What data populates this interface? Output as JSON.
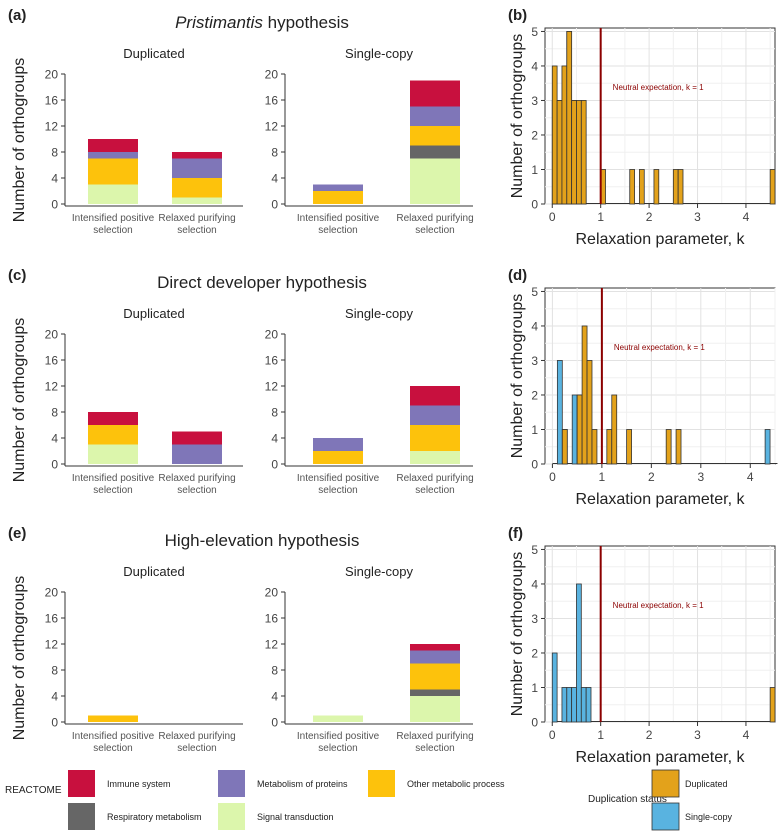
{
  "reactome_categories": [
    {
      "key": "immune",
      "label": "Immune system",
      "color": "#c8103e"
    },
    {
      "key": "respiratory",
      "label": "Respiratory metabolism",
      "color": "#666666"
    },
    {
      "key": "proteins",
      "label": "Metabolism of proteins",
      "color": "#7f76b8"
    },
    {
      "key": "signal",
      "label": "Signal transduction",
      "color": "#dcf6ac"
    },
    {
      "key": "other",
      "label": "Other metabolic process",
      "color": "#fdc20c"
    }
  ],
  "legend": {
    "reactome_title": "REACTOME",
    "duplication_title": "Duplication status",
    "duplication_items": [
      {
        "key": "dup",
        "label": "Duplicated",
        "color": "#e3a21b"
      },
      {
        "key": "single",
        "label": "Single-copy",
        "color": "#59b3e0"
      }
    ]
  },
  "chart_data": [
    {
      "panel": "(a)",
      "type": "bar",
      "stacked": true,
      "title_italic": "Pristimantis",
      "title_rest": " hypothesis",
      "ylabel": "Number of orthogroups",
      "ylim": [
        0,
        20
      ],
      "yticks": [
        "0",
        "4",
        "8",
        "12",
        "16",
        "20"
      ],
      "facets": [
        "Duplicated",
        "Single-copy"
      ],
      "categories": [
        "Intensified positive selection",
        "Relaxed purifying selection"
      ],
      "category_lines": [
        [
          "Intensified positive",
          "selection"
        ],
        [
          "Relaxed purifying",
          "selection"
        ]
      ],
      "stack_order": [
        "signal",
        "respiratory",
        "other",
        "proteins",
        "immune"
      ],
      "bars": [
        [
          {
            "signal": 3,
            "respiratory": 0,
            "other": 4,
            "proteins": 1,
            "immune": 2
          },
          {
            "signal": 1,
            "respiratory": 0,
            "other": 3,
            "proteins": 3,
            "immune": 1
          }
        ],
        [
          {
            "signal": 0,
            "respiratory": 0,
            "other": 2,
            "proteins": 1,
            "immune": 0
          },
          {
            "signal": 7,
            "respiratory": 2,
            "other": 3,
            "proteins": 3,
            "immune": 4
          }
        ]
      ]
    },
    {
      "panel": "(b)",
      "type": "bar",
      "histogram": true,
      "xlabel": "Relaxation parameter, k",
      "ylabel": "Number of orthogroups",
      "xlim": [
        -0.15,
        4.6
      ],
      "ylim": [
        0,
        5.1
      ],
      "xticks": [
        "0",
        "1",
        "2",
        "3",
        "4"
      ],
      "yticks": [
        "0",
        "1",
        "2",
        "3",
        "4",
        "5"
      ],
      "neutral_line": 1,
      "annotation": "Neutral expectation, k = 1",
      "bin_width": 0.1,
      "series": [
        {
          "name": "Single-copy",
          "key": "single",
          "bins": [
            [
              0.05,
              3
            ],
            [
              0.15,
              3
            ],
            [
              0.25,
              3
            ],
            [
              0.35,
              5
            ],
            [
              0.45,
              3
            ],
            [
              0.55,
              2
            ],
            [
              0.65,
              1
            ]
          ]
        },
        {
          "name": "Duplicated",
          "key": "dup",
          "bins": [
            [
              0.05,
              4
            ],
            [
              0.15,
              3
            ],
            [
              0.25,
              4
            ],
            [
              0.35,
              5
            ],
            [
              0.45,
              3
            ],
            [
              0.55,
              3
            ],
            [
              0.65,
              3
            ],
            [
              1.05,
              1
            ],
            [
              1.65,
              1
            ],
            [
              1.85,
              1
            ],
            [
              2.15,
              1
            ],
            [
              2.55,
              1
            ],
            [
              2.65,
              1
            ],
            [
              4.55,
              1
            ]
          ]
        }
      ]
    },
    {
      "panel": "(c)",
      "type": "bar",
      "stacked": true,
      "title_italic": "",
      "title_rest": "Direct developer hypothesis",
      "ylabel": "Number of orthogroups",
      "ylim": [
        0,
        20
      ],
      "yticks": [
        "0",
        "4",
        "8",
        "12",
        "16",
        "20"
      ],
      "facets": [
        "Duplicated",
        "Single-copy"
      ],
      "categories": [
        "Intensified positive selection",
        "Relaxed purifying selection"
      ],
      "category_lines": [
        [
          "Intensified positive",
          "selection"
        ],
        [
          "Relaxed purifying",
          "selection"
        ]
      ],
      "stack_order": [
        "signal",
        "respiratory",
        "other",
        "proteins",
        "immune"
      ],
      "bars": [
        [
          {
            "signal": 3,
            "respiratory": 0,
            "other": 3,
            "proteins": 0,
            "immune": 2
          },
          {
            "signal": 0,
            "respiratory": 0,
            "other": 0,
            "proteins": 3,
            "immune": 2
          }
        ],
        [
          {
            "signal": 0,
            "respiratory": 0,
            "other": 2,
            "proteins": 2,
            "immune": 0
          },
          {
            "signal": 2,
            "respiratory": 0,
            "other": 4,
            "proteins": 3,
            "immune": 3
          }
        ]
      ]
    },
    {
      "panel": "(d)",
      "type": "bar",
      "histogram": true,
      "xlabel": "Relaxation parameter, k",
      "ylabel": "Number of orthogroups",
      "xlim": [
        -0.15,
        4.5
      ],
      "ylim": [
        0,
        5.1
      ],
      "xticks": [
        "0",
        "1",
        "2",
        "3",
        "4"
      ],
      "yticks": [
        "0",
        "1",
        "2",
        "3",
        "4",
        "5"
      ],
      "neutral_line": 1,
      "annotation": "Neutral expectation, k = 1",
      "bin_width": 0.1,
      "series": [
        {
          "name": "Single-copy",
          "key": "single",
          "bins": [
            [
              0.15,
              3
            ],
            [
              0.25,
              1
            ],
            [
              0.45,
              2
            ],
            [
              0.55,
              2
            ],
            [
              0.65,
              1
            ],
            [
              4.35,
              1
            ]
          ]
        },
        {
          "name": "Duplicated",
          "key": "dup",
          "bins": [
            [
              0.25,
              1
            ],
            [
              0.55,
              2
            ],
            [
              0.65,
              4
            ],
            [
              0.75,
              3
            ],
            [
              0.85,
              1
            ],
            [
              1.15,
              1
            ],
            [
              1.25,
              2
            ],
            [
              1.55,
              1
            ],
            [
              2.35,
              1
            ],
            [
              2.55,
              1
            ]
          ]
        }
      ]
    },
    {
      "panel": "(e)",
      "type": "bar",
      "stacked": true,
      "title_italic": "",
      "title_rest": "High-elevation hypothesis",
      "ylabel": "Number of orthogroups",
      "ylim": [
        0,
        20
      ],
      "yticks": [
        "0",
        "4",
        "8",
        "12",
        "16",
        "20"
      ],
      "facets": [
        "Duplicated",
        "Single-copy"
      ],
      "categories": [
        "Intensified positive selection",
        "Relaxed purifying selection"
      ],
      "category_lines": [
        [
          "Intensified positive",
          "selection"
        ],
        [
          "Relaxed purifying",
          "selection"
        ]
      ],
      "stack_order": [
        "signal",
        "respiratory",
        "other",
        "proteins",
        "immune"
      ],
      "bars": [
        [
          {
            "signal": 0,
            "respiratory": 0,
            "other": 1,
            "proteins": 0,
            "immune": 0
          },
          {
            "signal": 0,
            "respiratory": 0,
            "other": 0,
            "proteins": 0,
            "immune": 0
          }
        ],
        [
          {
            "signal": 1,
            "respiratory": 0,
            "other": 0,
            "proteins": 0,
            "immune": 0
          },
          {
            "signal": 4,
            "respiratory": 1,
            "other": 4,
            "proteins": 2,
            "immune": 1
          }
        ]
      ]
    },
    {
      "panel": "(f)",
      "type": "bar",
      "histogram": true,
      "xlabel": "Relaxation parameter, k",
      "ylabel": "Number of orthogroups",
      "xlim": [
        -0.15,
        4.6
      ],
      "ylim": [
        0,
        5.1
      ],
      "xticks": [
        "0",
        "1",
        "2",
        "3",
        "4"
      ],
      "yticks": [
        "0",
        "1",
        "2",
        "3",
        "4",
        "5"
      ],
      "neutral_line": 1,
      "annotation": "Neutral expectation, k = 1",
      "bin_width": 0.1,
      "series": [
        {
          "name": "Single-copy",
          "key": "single",
          "bins": [
            [
              0.05,
              2
            ],
            [
              0.25,
              1
            ],
            [
              0.35,
              1
            ],
            [
              0.45,
              1
            ],
            [
              0.55,
              4
            ],
            [
              0.65,
              1
            ],
            [
              0.75,
              1
            ]
          ]
        },
        {
          "name": "Duplicated",
          "key": "dup",
          "bins": [
            [
              4.55,
              1
            ]
          ]
        }
      ]
    }
  ]
}
